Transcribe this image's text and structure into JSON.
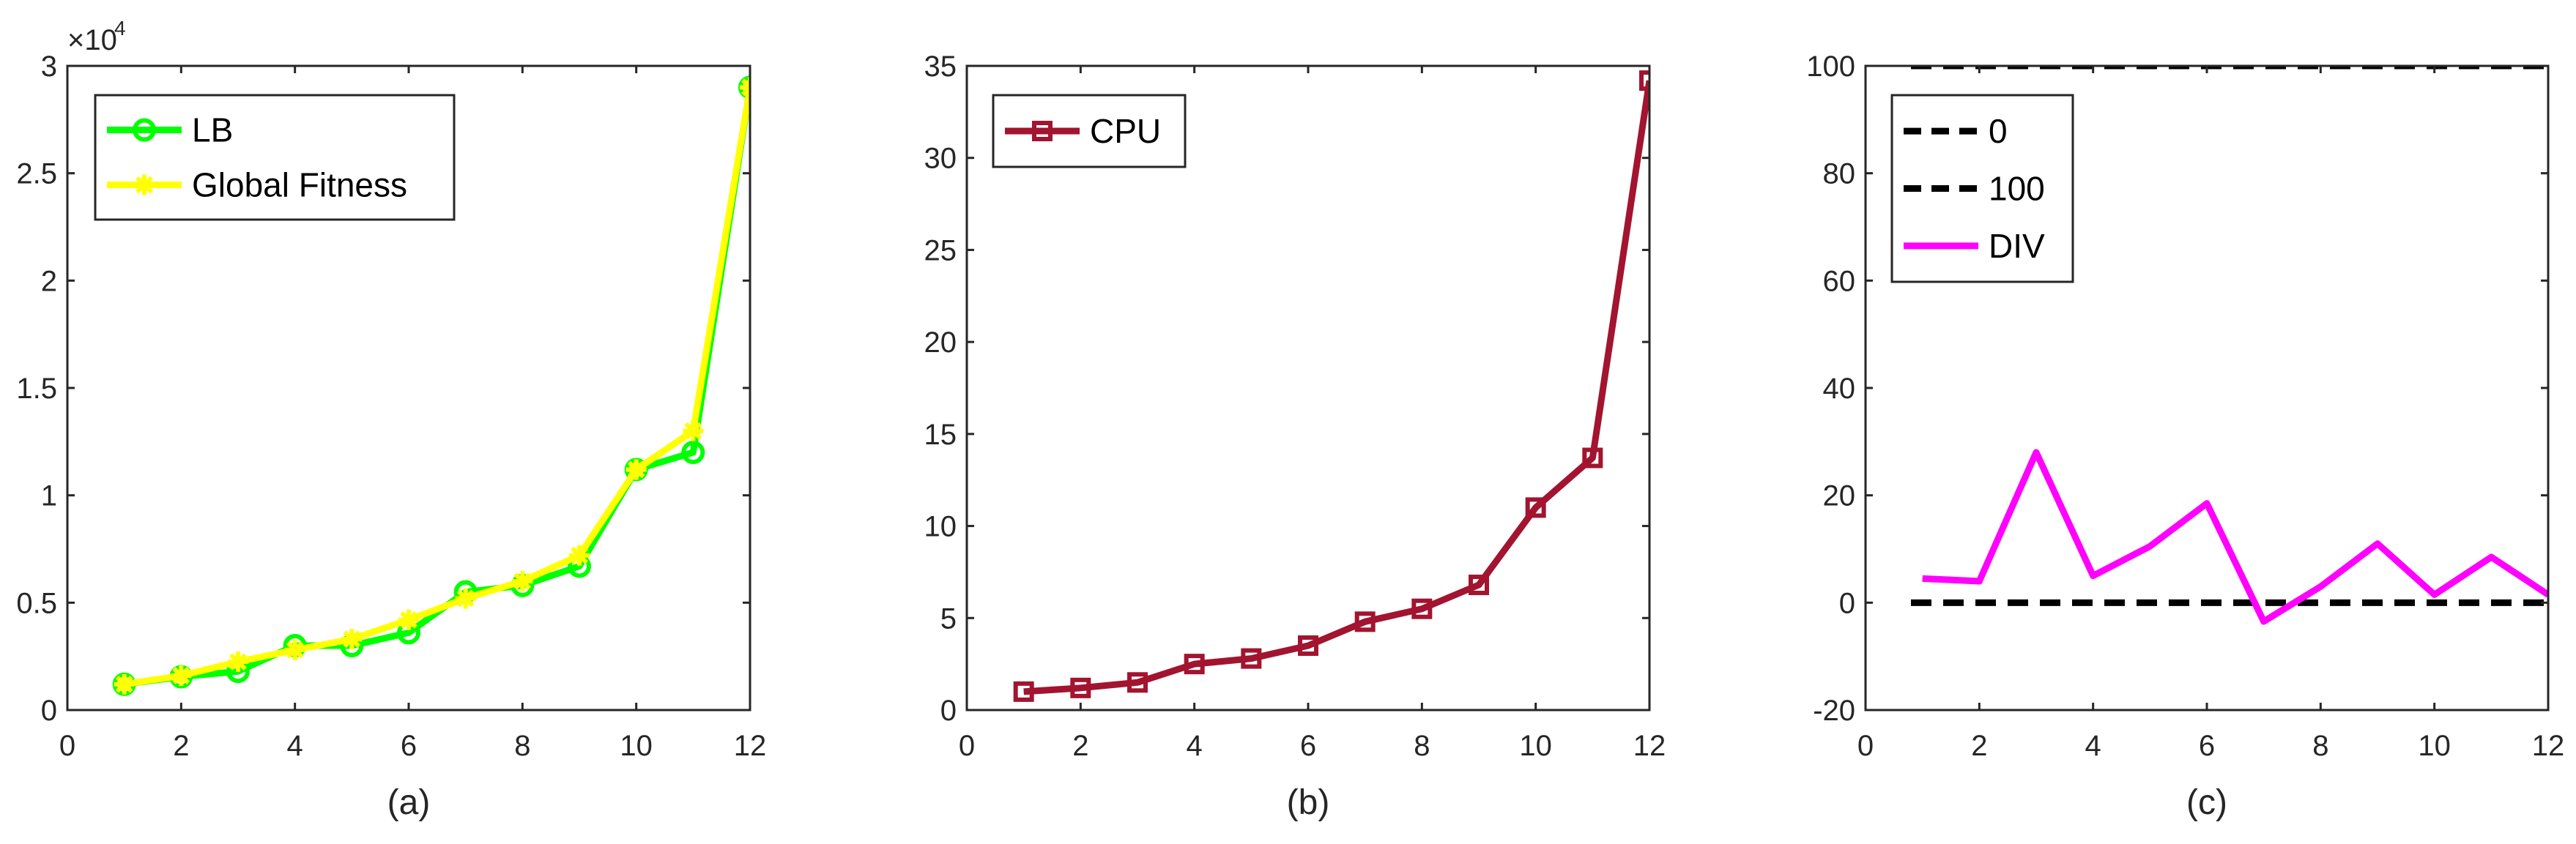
{
  "chart_data": [
    {
      "type": "line",
      "caption": "(a)",
      "x": [
        1,
        2,
        3,
        4,
        5,
        6,
        7,
        8,
        9,
        10,
        11,
        12
      ],
      "xlim": [
        0,
        12
      ],
      "ylim": [
        0,
        3
      ],
      "xticks": [
        0,
        2,
        4,
        6,
        8,
        10,
        12
      ],
      "yticks": [
        0,
        0.5,
        1,
        1.5,
        2,
        2.5,
        3
      ],
      "ytick_labels": [
        "0",
        "0.5",
        "1",
        "1.5",
        "2",
        "2.5",
        "3"
      ],
      "y_multiplier": "×10",
      "y_multiplier_exp": "4",
      "legend_position": "top-left",
      "grid": false,
      "series": [
        {
          "name": "LB",
          "color": "#00ff00",
          "marker": "circle",
          "values": [
            0.12,
            0.155,
            0.18,
            0.3,
            0.3,
            0.36,
            0.55,
            0.58,
            0.67,
            1.12,
            1.2,
            2.9
          ]
        },
        {
          "name": "Global Fitness",
          "color": "#ffff00",
          "marker": "star",
          "values": [
            0.12,
            0.16,
            0.225,
            0.28,
            0.33,
            0.42,
            0.52,
            0.6,
            0.72,
            1.12,
            1.3,
            2.9
          ]
        }
      ]
    },
    {
      "type": "line",
      "caption": "(b)",
      "x": [
        1,
        2,
        3,
        4,
        5,
        6,
        7,
        8,
        9,
        10,
        11,
        12
      ],
      "xlim": [
        0,
        12
      ],
      "ylim": [
        0,
        35
      ],
      "xticks": [
        0,
        2,
        4,
        6,
        8,
        10,
        12
      ],
      "yticks": [
        0,
        5,
        10,
        15,
        20,
        25,
        30,
        35
      ],
      "ytick_labels": [
        "0",
        "5",
        "10",
        "15",
        "20",
        "25",
        "30",
        "35"
      ],
      "legend_position": "top-left",
      "grid": false,
      "series": [
        {
          "name": "CPU",
          "color": "#a2142f",
          "marker": "square",
          "values": [
            1.0,
            1.2,
            1.5,
            2.5,
            2.8,
            3.5,
            4.8,
            5.5,
            6.8,
            11.0,
            13.7,
            34.2
          ]
        }
      ]
    },
    {
      "type": "line",
      "caption": "(c)",
      "x": [
        1,
        2,
        3,
        4,
        5,
        6,
        7,
        8,
        9,
        10,
        11,
        12
      ],
      "xlim": [
        0,
        12
      ],
      "ylim": [
        -20,
        100
      ],
      "xticks": [
        0,
        2,
        4,
        6,
        8,
        10,
        12
      ],
      "yticks": [
        -20,
        0,
        20,
        40,
        60,
        80,
        100
      ],
      "ytick_labels": [
        "-20",
        "0",
        "20",
        "40",
        "60",
        "80",
        "100"
      ],
      "legend_position": "top-left",
      "grid": false,
      "series": [
        {
          "name": "0",
          "color": "#000000",
          "style": "dashed",
          "values": [
            0,
            0,
            0,
            0,
            0,
            0,
            0,
            0,
            0,
            0,
            0,
            0
          ]
        },
        {
          "name": "100",
          "color": "#000000",
          "style": "dashed",
          "values": [
            100,
            100,
            100,
            100,
            100,
            100,
            100,
            100,
            100,
            100,
            100,
            100
          ]
        },
        {
          "name": "DIV",
          "color": "#ff00ff",
          "style": "solid",
          "values": [
            4.5,
            4.0,
            28.0,
            5.0,
            10.5,
            18.5,
            -3.5,
            3.0,
            11.0,
            1.5,
            8.5,
            1.5
          ]
        }
      ]
    }
  ]
}
